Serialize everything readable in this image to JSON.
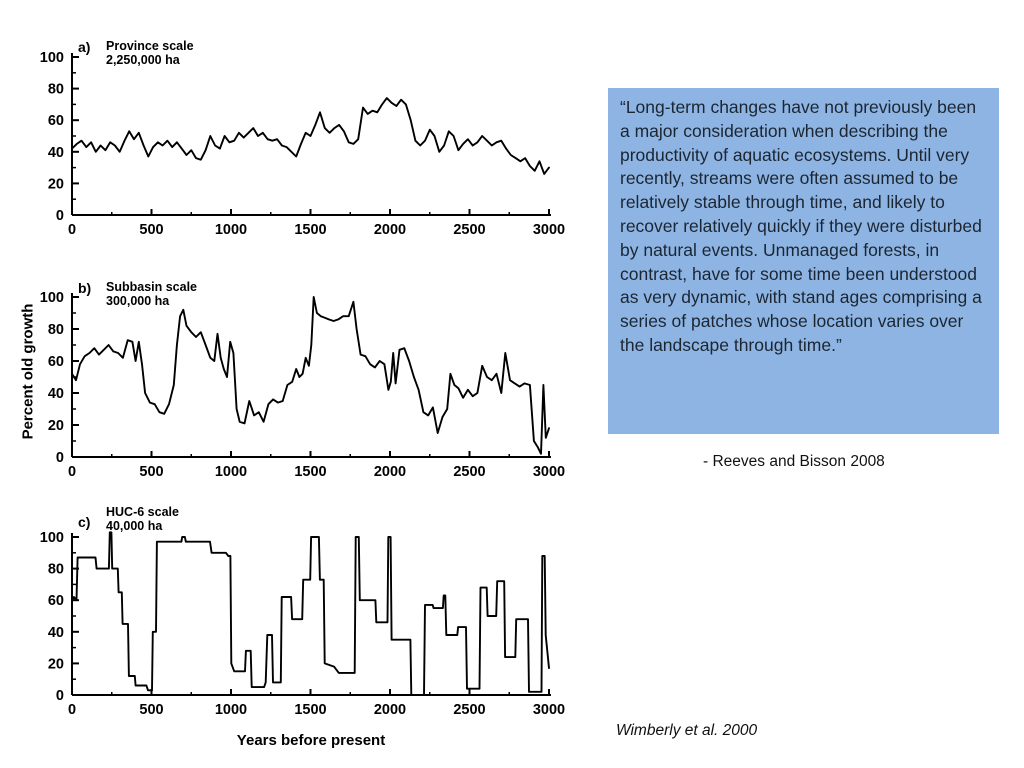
{
  "quote": {
    "text": "“Long-term changes have not previously been a major consideration when describing the productivity of aquatic ecosystems. Until very recently, streams were often assumed to be relatively stable through time, and likely to recover relatively quickly if they were disturbed by natural events. Unmanaged forests, in contrast, have for some time been understood as very dynamic, with stand ages comprising a series of patches whose location varies over the landscape through time.”",
    "attribution": "- Reeves and Bisson  2008",
    "box_color": "#8DB4E2"
  },
  "figure": {
    "citation": "Wimberly et al. 2000",
    "xlabel": "Years before present",
    "ylabel": "Percent old growth",
    "line_color": "#000000"
  },
  "chart_data": [
    {
      "id": "a",
      "type": "line",
      "label": "a)",
      "title_lines": [
        "Province scale",
        "2,250,000 ha"
      ],
      "xlim": [
        0,
        3000
      ],
      "ylim": [
        0,
        100
      ],
      "x_ticks": [
        0,
        500,
        1000,
        1500,
        2000,
        2500,
        3000
      ],
      "y_ticks": [
        0,
        20,
        40,
        60,
        80,
        100
      ],
      "points": [
        [
          0,
          42
        ],
        [
          30,
          45
        ],
        [
          60,
          47
        ],
        [
          90,
          43
        ],
        [
          120,
          46
        ],
        [
          150,
          40
        ],
        [
          180,
          44
        ],
        [
          210,
          41
        ],
        [
          240,
          46
        ],
        [
          270,
          44
        ],
        [
          300,
          40
        ],
        [
          330,
          47
        ],
        [
          360,
          53
        ],
        [
          390,
          48
        ],
        [
          420,
          52
        ],
        [
          450,
          44
        ],
        [
          480,
          37
        ],
        [
          510,
          43
        ],
        [
          540,
          46
        ],
        [
          570,
          44
        ],
        [
          600,
          47
        ],
        [
          630,
          43
        ],
        [
          660,
          46
        ],
        [
          690,
          42
        ],
        [
          720,
          38
        ],
        [
          750,
          41
        ],
        [
          780,
          36
        ],
        [
          810,
          35
        ],
        [
          840,
          41
        ],
        [
          870,
          50
        ],
        [
          900,
          44
        ],
        [
          930,
          42
        ],
        [
          960,
          50
        ],
        [
          990,
          46
        ],
        [
          1020,
          47
        ],
        [
          1050,
          52
        ],
        [
          1080,
          49
        ],
        [
          1110,
          52
        ],
        [
          1140,
          55
        ],
        [
          1170,
          50
        ],
        [
          1200,
          52
        ],
        [
          1230,
          48
        ],
        [
          1260,
          47
        ],
        [
          1290,
          48
        ],
        [
          1320,
          44
        ],
        [
          1350,
          43
        ],
        [
          1380,
          40
        ],
        [
          1410,
          37
        ],
        [
          1440,
          45
        ],
        [
          1470,
          52
        ],
        [
          1500,
          50
        ],
        [
          1530,
          57
        ],
        [
          1560,
          65
        ],
        [
          1590,
          55
        ],
        [
          1620,
          52
        ],
        [
          1650,
          55
        ],
        [
          1680,
          57
        ],
        [
          1710,
          53
        ],
        [
          1740,
          46
        ],
        [
          1770,
          45
        ],
        [
          1800,
          48
        ],
        [
          1830,
          68
        ],
        [
          1860,
          64
        ],
        [
          1890,
          66
        ],
        [
          1920,
          65
        ],
        [
          1950,
          70
        ],
        [
          1980,
          74
        ],
        [
          2010,
          71
        ],
        [
          2040,
          69
        ],
        [
          2070,
          73
        ],
        [
          2100,
          70
        ],
        [
          2130,
          60
        ],
        [
          2160,
          47
        ],
        [
          2190,
          44
        ],
        [
          2220,
          47
        ],
        [
          2250,
          54
        ],
        [
          2280,
          50
        ],
        [
          2310,
          40
        ],
        [
          2340,
          44
        ],
        [
          2370,
          53
        ],
        [
          2400,
          50
        ],
        [
          2430,
          41
        ],
        [
          2460,
          45
        ],
        [
          2490,
          48
        ],
        [
          2520,
          44
        ],
        [
          2550,
          46
        ],
        [
          2580,
          50
        ],
        [
          2610,
          47
        ],
        [
          2640,
          44
        ],
        [
          2670,
          46
        ],
        [
          2700,
          47
        ],
        [
          2730,
          42
        ],
        [
          2760,
          38
        ],
        [
          2790,
          36
        ],
        [
          2820,
          34
        ],
        [
          2850,
          36
        ],
        [
          2880,
          31
        ],
        [
          2910,
          28
        ],
        [
          2940,
          34
        ],
        [
          2970,
          26
        ],
        [
          3000,
          30
        ]
      ]
    },
    {
      "id": "b",
      "type": "line",
      "label": "b)",
      "title_lines": [
        "Subbasin scale",
        "300,000 ha"
      ],
      "xlim": [
        0,
        3000
      ],
      "ylim": [
        0,
        100
      ],
      "x_ticks": [
        0,
        500,
        1000,
        1500,
        2000,
        2500,
        3000
      ],
      "y_ticks": [
        0,
        20,
        40,
        60,
        80,
        100
      ],
      "points": [
        [
          0,
          52
        ],
        [
          25,
          48
        ],
        [
          50,
          58
        ],
        [
          80,
          63
        ],
        [
          110,
          65
        ],
        [
          140,
          68
        ],
        [
          170,
          64
        ],
        [
          200,
          67
        ],
        [
          230,
          70
        ],
        [
          260,
          66
        ],
        [
          290,
          65
        ],
        [
          320,
          62
        ],
        [
          350,
          73
        ],
        [
          380,
          72
        ],
        [
          400,
          60
        ],
        [
          420,
          72
        ],
        [
          440,
          58
        ],
        [
          460,
          40
        ],
        [
          490,
          34
        ],
        [
          520,
          33
        ],
        [
          550,
          28
        ],
        [
          580,
          27
        ],
        [
          610,
          33
        ],
        [
          640,
          45
        ],
        [
          660,
          70
        ],
        [
          680,
          88
        ],
        [
          700,
          92
        ],
        [
          720,
          82
        ],
        [
          750,
          78
        ],
        [
          780,
          75
        ],
        [
          810,
          78
        ],
        [
          840,
          70
        ],
        [
          870,
          62
        ],
        [
          895,
          60
        ],
        [
          915,
          77
        ],
        [
          935,
          62
        ],
        [
          955,
          55
        ],
        [
          975,
          50
        ],
        [
          995,
          72
        ],
        [
          1015,
          65
        ],
        [
          1035,
          30
        ],
        [
          1055,
          22
        ],
        [
          1085,
          21
        ],
        [
          1115,
          35
        ],
        [
          1145,
          26
        ],
        [
          1175,
          28
        ],
        [
          1205,
          22
        ],
        [
          1235,
          33
        ],
        [
          1265,
          36
        ],
        [
          1295,
          34
        ],
        [
          1325,
          35
        ],
        [
          1355,
          45
        ],
        [
          1385,
          47
        ],
        [
          1410,
          55
        ],
        [
          1430,
          50
        ],
        [
          1450,
          52
        ],
        [
          1470,
          62
        ],
        [
          1490,
          57
        ],
        [
          1505,
          70
        ],
        [
          1520,
          100
        ],
        [
          1540,
          90
        ],
        [
          1565,
          88
        ],
        [
          1590,
          87
        ],
        [
          1615,
          86
        ],
        [
          1645,
          85
        ],
        [
          1675,
          86
        ],
        [
          1705,
          88
        ],
        [
          1740,
          88
        ],
        [
          1770,
          97
        ],
        [
          1790,
          80
        ],
        [
          1815,
          64
        ],
        [
          1845,
          63
        ],
        [
          1875,
          58
        ],
        [
          1905,
          56
        ],
        [
          1935,
          60
        ],
        [
          1965,
          58
        ],
        [
          1990,
          42
        ],
        [
          2005,
          47
        ],
        [
          2020,
          65
        ],
        [
          2035,
          46
        ],
        [
          2060,
          67
        ],
        [
          2090,
          68
        ],
        [
          2120,
          60
        ],
        [
          2150,
          50
        ],
        [
          2180,
          42
        ],
        [
          2210,
          28
        ],
        [
          2240,
          26
        ],
        [
          2270,
          31
        ],
        [
          2300,
          15
        ],
        [
          2330,
          25
        ],
        [
          2360,
          30
        ],
        [
          2380,
          52
        ],
        [
          2405,
          45
        ],
        [
          2430,
          43
        ],
        [
          2460,
          37
        ],
        [
          2490,
          42
        ],
        [
          2520,
          38
        ],
        [
          2550,
          40
        ],
        [
          2580,
          57
        ],
        [
          2610,
          50
        ],
        [
          2640,
          48
        ],
        [
          2670,
          52
        ],
        [
          2700,
          40
        ],
        [
          2725,
          65
        ],
        [
          2755,
          48
        ],
        [
          2785,
          46
        ],
        [
          2815,
          44
        ],
        [
          2845,
          46
        ],
        [
          2880,
          45
        ],
        [
          2905,
          10
        ],
        [
          2930,
          6
        ],
        [
          2950,
          2
        ],
        [
          2965,
          45
        ],
        [
          2980,
          12
        ],
        [
          3000,
          18
        ]
      ]
    },
    {
      "id": "c",
      "type": "line",
      "label": "c)",
      "title_lines": [
        "HUC-6 scale",
        "40,000 ha"
      ],
      "xlim": [
        0,
        3000
      ],
      "ylim": [
        0,
        100
      ],
      "x_ticks": [
        0,
        500,
        1000,
        1500,
        2000,
        2500,
        3000
      ],
      "y_ticks": [
        0,
        20,
        40,
        60,
        80,
        100
      ],
      "points": [
        [
          0,
          60
        ],
        [
          12,
          62
        ],
        [
          28,
          60
        ],
        [
          35,
          87
        ],
        [
          148,
          87
        ],
        [
          155,
          80
        ],
        [
          232,
          80
        ],
        [
          238,
          103
        ],
        [
          248,
          103
        ],
        [
          253,
          80
        ],
        [
          288,
          80
        ],
        [
          293,
          65
        ],
        [
          313,
          65
        ],
        [
          318,
          45
        ],
        [
          352,
          45
        ],
        [
          358,
          12
        ],
        [
          395,
          12
        ],
        [
          400,
          6
        ],
        [
          468,
          6
        ],
        [
          478,
          3
        ],
        [
          503,
          3
        ],
        [
          508,
          40
        ],
        [
          528,
          40
        ],
        [
          534,
          97
        ],
        [
          688,
          97
        ],
        [
          693,
          100
        ],
        [
          710,
          100
        ],
        [
          716,
          97
        ],
        [
          868,
          97
        ],
        [
          878,
          90
        ],
        [
          968,
          90
        ],
        [
          983,
          88
        ],
        [
          996,
          88
        ],
        [
          1002,
          20
        ],
        [
          1020,
          15
        ],
        [
          1088,
          15
        ],
        [
          1094,
          28
        ],
        [
          1124,
          28
        ],
        [
          1130,
          5
        ],
        [
          1208,
          5
        ],
        [
          1218,
          8
        ],
        [
          1228,
          38
        ],
        [
          1258,
          38
        ],
        [
          1264,
          8
        ],
        [
          1313,
          8
        ],
        [
          1319,
          62
        ],
        [
          1378,
          62
        ],
        [
          1384,
          48
        ],
        [
          1448,
          48
        ],
        [
          1454,
          73
        ],
        [
          1498,
          73
        ],
        [
          1504,
          100
        ],
        [
          1553,
          100
        ],
        [
          1559,
          73
        ],
        [
          1583,
          73
        ],
        [
          1589,
          20
        ],
        [
          1648,
          18
        ],
        [
          1678,
          14
        ],
        [
          1778,
          14
        ],
        [
          1784,
          100
        ],
        [
          1804,
          100
        ],
        [
          1810,
          60
        ],
        [
          1908,
          60
        ],
        [
          1914,
          46
        ],
        [
          1984,
          46
        ],
        [
          1989,
          100
        ],
        [
          2004,
          100
        ],
        [
          2010,
          35
        ],
        [
          2128,
          35
        ],
        [
          2134,
          0
        ],
        [
          2214,
          0
        ],
        [
          2220,
          57
        ],
        [
          2268,
          57
        ],
        [
          2274,
          55
        ],
        [
          2333,
          55
        ],
        [
          2338,
          63
        ],
        [
          2348,
          63
        ],
        [
          2354,
          38
        ],
        [
          2423,
          38
        ],
        [
          2428,
          43
        ],
        [
          2478,
          43
        ],
        [
          2484,
          4
        ],
        [
          2563,
          4
        ],
        [
          2569,
          68
        ],
        [
          2608,
          68
        ],
        [
          2614,
          50
        ],
        [
          2668,
          50
        ],
        [
          2674,
          72
        ],
        [
          2718,
          72
        ],
        [
          2724,
          24
        ],
        [
          2788,
          24
        ],
        [
          2794,
          48
        ],
        [
          2868,
          48
        ],
        [
          2874,
          2
        ],
        [
          2953,
          2
        ],
        [
          2958,
          88
        ],
        [
          2973,
          88
        ],
        [
          2979,
          38
        ],
        [
          3000,
          17
        ]
      ]
    }
  ]
}
